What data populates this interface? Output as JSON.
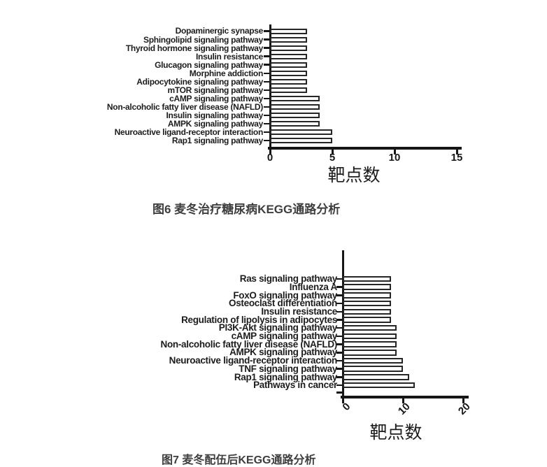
{
  "page": {
    "background": "#ffffff"
  },
  "figures": [
    {
      "caption": "图6 麦冬治疗糖尿病KEGG通路分析"
    },
    {
      "caption": "图7 麦冬配伍后KEGG通路分析"
    }
  ],
  "chart_data": [
    {
      "type": "bar",
      "orientation": "horizontal",
      "title": "",
      "xlabel": "靶点数",
      "ylabel": "",
      "categories": [
        "Dopaminergic synapse",
        "Sphingolipid signaling pathway",
        "Thyroid hormone signaling pathway",
        "Insulin resistance",
        "Glucagon signaling pathway",
        "Morphine addiction",
        "Adipocytokine signaling pathway",
        "mTOR signaling pathway",
        "cAMP signaling pathway",
        "Non-alcoholic fatty liver disease (NAFLD)",
        "Insulin signaling pathway",
        "AMPK signaling pathway",
        "Neuroactive ligand-receptor interaction",
        "Rap1 signaling pathway"
      ],
      "values": [
        3,
        3,
        3,
        3,
        3,
        3,
        3,
        3,
        4,
        4,
        4,
        4,
        5,
        5
      ],
      "xlim": [
        0,
        15
      ],
      "xticks": [
        0,
        5,
        10,
        15
      ],
      "xtick_rotation": 0,
      "grid": false,
      "legend": false,
      "bar_fill": "#ffffff",
      "bar_border": "#262626",
      "axis_color": "#161616"
    },
    {
      "type": "bar",
      "orientation": "horizontal",
      "title": "",
      "xlabel": "靶点数",
      "ylabel": "",
      "categories": [
        "Ras signaling pathway",
        "Influenza A",
        "FoxO signaling pathway",
        "Osteoclast differentiation",
        "Insulin resistance",
        "Regulation of lipolysis in adipocytes",
        "PI3K-Akt signaling pathway",
        "cAMP signaling pathway",
        "Non-alcoholic fatty liver disease (NAFLD)",
        "AMPK signaling pathway",
        "Neuroactive ligand-receptor interaction",
        "TNF signaling pathway",
        "Rap1 signaling pathway",
        "Pathways in cancer"
      ],
      "values": [
        8,
        8,
        8,
        8,
        8,
        8,
        9,
        9,
        9,
        9,
        10,
        10,
        11,
        12
      ],
      "xlim": [
        0,
        20
      ],
      "xticks": [
        0,
        10,
        20
      ],
      "xtick_rotation": -45,
      "grid": false,
      "legend": false,
      "bar_fill": "#ffffff",
      "bar_border": "#262626",
      "axis_color": "#161616"
    }
  ]
}
